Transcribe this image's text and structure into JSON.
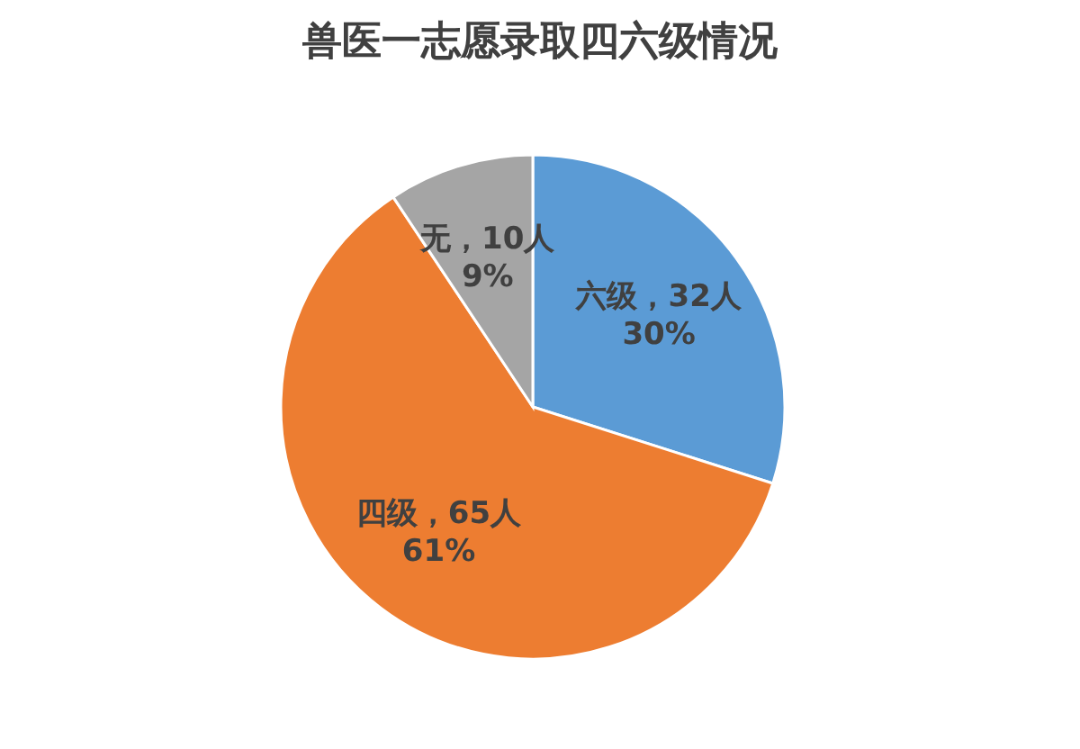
{
  "chart_data": {
    "type": "pie",
    "title": "兽医一志愿录取四六级情况",
    "categories": [
      "六级",
      "四级",
      "无"
    ],
    "values": [
      32,
      65,
      10
    ],
    "colors": [
      "#5b9bd5",
      "#ed7d31",
      "#a5a5a5"
    ],
    "value_labels": [
      "，32人\n30%",
      "，65人\n61%",
      "，10人\n9%"
    ],
    "legend": false
  }
}
